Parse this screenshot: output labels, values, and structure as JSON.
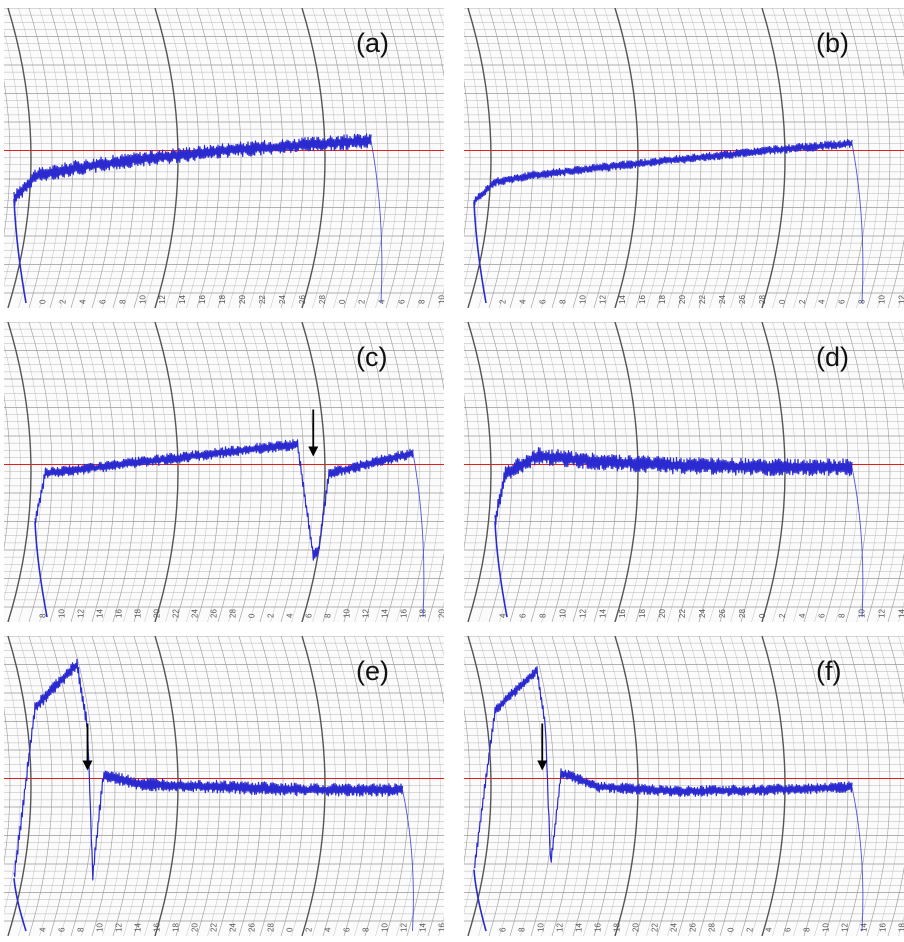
{
  "figure": {
    "panels": [
      {
        "id": "a",
        "label": "(a)"
      },
      {
        "id": "b",
        "label": "(b)"
      },
      {
        "id": "c",
        "label": "(c)"
      },
      {
        "id": "d",
        "label": "(d)"
      },
      {
        "id": "e",
        "label": "(e)"
      },
      {
        "id": "f",
        "label": "(f)"
      }
    ]
  },
  "colors": {
    "trace": "#2a2ad0",
    "reference_line": "#e02020",
    "grid": "#9a9a9a",
    "grid_major": "#555555",
    "paper": "#fbfbfb",
    "arrow": "#000000"
  },
  "chart_data": [
    {
      "panel": "a",
      "type": "line",
      "x_tick_labels": [
        "0",
        "2",
        "4",
        "6",
        "8",
        "10",
        "12",
        "14",
        "16",
        "18",
        "20",
        "22",
        "24",
        "26",
        "28",
        "0",
        "2",
        "4",
        "6",
        "8",
        "10"
      ],
      "reference_level": 500,
      "ylim": [
        0,
        1000
      ],
      "series": [
        {
          "x": [
            0,
            2,
            6,
            12,
            20,
            28,
            34
          ],
          "y": [
            330,
            410,
            440,
            470,
            500,
            520,
            535
          ]
        }
      ],
      "noise": 35,
      "arrow_at": null
    },
    {
      "panel": "b",
      "type": "line",
      "x_tick_labels": [
        "2",
        "4",
        "6",
        "8",
        "10",
        "12",
        "14",
        "16",
        "18",
        "20",
        "22",
        "24",
        "26",
        "28",
        "0",
        "2",
        "4",
        "6",
        "8",
        "10",
        "12"
      ],
      "reference_level": 500,
      "ylim": [
        0,
        1000
      ],
      "series": [
        {
          "x": [
            0,
            2,
            6,
            12,
            20,
            28,
            36
          ],
          "y": [
            320,
            390,
            415,
            440,
            470,
            500,
            525
          ]
        }
      ],
      "noise": 20,
      "arrow_at": null
    },
    {
      "panel": "c",
      "type": "line",
      "x_tick_labels": [
        "8",
        "10",
        "12",
        "14",
        "16",
        "18",
        "20",
        "22",
        "24",
        "26",
        "28",
        "0",
        "2",
        "4",
        "6",
        "8",
        "10",
        "12",
        "14",
        "16",
        "18",
        "20"
      ],
      "reference_level": 500,
      "ylim": [
        0,
        1000
      ],
      "series": [
        {
          "x": [
            2,
            3,
            8,
            16,
            24,
            27,
            28.5,
            29,
            30,
            38
          ],
          "y": [
            300,
            470,
            490,
            525,
            560,
            570,
            180,
            200,
            470,
            540
          ]
        }
      ],
      "noise": 25,
      "arrow_at": 28.5
    },
    {
      "panel": "d",
      "type": "line",
      "x_tick_labels": [
        "4",
        "6",
        "8",
        "10",
        "12",
        "14",
        "16",
        "18",
        "20",
        "22",
        "24",
        "26",
        "28",
        "0",
        "2",
        "4",
        "6",
        "8",
        "10",
        "12",
        "14"
      ],
      "reference_level": 500,
      "ylim": [
        0,
        1000
      ],
      "series": [
        {
          "x": [
            2,
            3,
            6,
            12,
            20,
            28,
            36
          ],
          "y": [
            300,
            470,
            530,
            510,
            495,
            490,
            490
          ]
        }
      ],
      "noise": 40,
      "arrow_at": null
    },
    {
      "panel": "e",
      "type": "line",
      "x_tick_labels": [
        "4",
        "6",
        "8",
        "10",
        "12",
        "14",
        "16",
        "18",
        "20",
        "22",
        "24",
        "26",
        "28",
        "0",
        "2",
        "4",
        "6",
        "8",
        "10",
        "12",
        "14",
        "16"
      ],
      "reference_level": 500,
      "ylim": [
        0,
        1000
      ],
      "series": [
        {
          "x": [
            0,
            2,
            6,
            7,
            7.5,
            8.5,
            12,
            20,
            28,
            37
          ],
          "y": [
            150,
            750,
            900,
            680,
            160,
            510,
            480,
            470,
            460,
            460
          ]
        }
      ],
      "noise": 30,
      "arrow_at": 7
    },
    {
      "panel": "f",
      "type": "line",
      "x_tick_labels": [
        "6",
        "8",
        "10",
        "12",
        "14",
        "16",
        "18",
        "20",
        "22",
        "24",
        "26",
        "28",
        "0",
        "2",
        "4",
        "6",
        "8",
        "10",
        "12",
        "14",
        "16",
        "18"
      ],
      "reference_level": 500,
      "ylim": [
        0,
        1000
      ],
      "series": [
        {
          "x": [
            0,
            2,
            6,
            6.8,
            7.3,
            8.3,
            12,
            20,
            28,
            36
          ],
          "y": [
            180,
            740,
            880,
            680,
            200,
            520,
            470,
            455,
            460,
            470
          ]
        }
      ],
      "noise": 25,
      "arrow_at": 6.5
    }
  ]
}
